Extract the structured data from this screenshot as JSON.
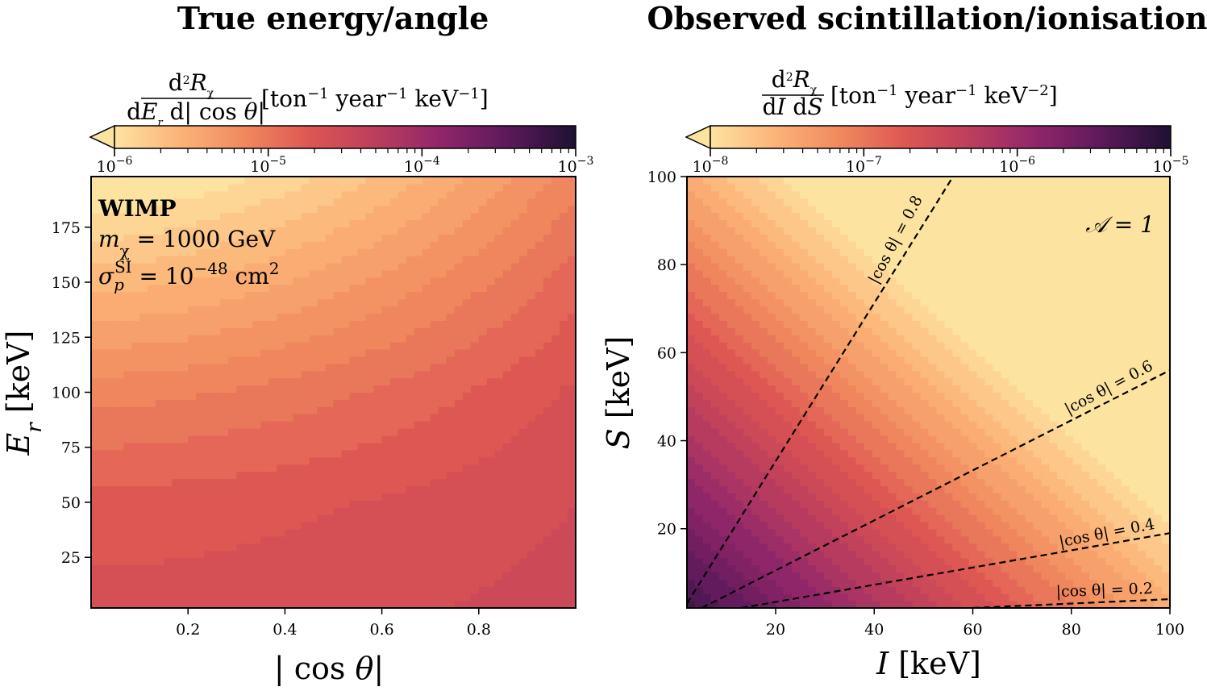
{
  "chart_data": [
    {
      "type": "heatmap",
      "subtype": "filled-contour",
      "title": "True energy/angle",
      "xlabel": "|cos θ|",
      "ylabel": "E_r [keV]",
      "xlim": [
        0.0,
        1.0
      ],
      "ylim": [
        2,
        198
      ],
      "xticks": [
        0.2,
        0.4,
        0.6,
        0.8
      ],
      "xtick_labels": [
        "0.2",
        "0.4",
        "0.6",
        "0.8"
      ],
      "yticks": [
        25,
        50,
        75,
        100,
        125,
        150,
        175
      ],
      "ytick_labels": [
        "25",
        "50",
        "75",
        "100",
        "125",
        "150",
        "175"
      ],
      "annotation": [
        "WIMP",
        "m_χ = 1000 GeV",
        "σ_p^SI = 10^−48 cm^2"
      ],
      "colormap": "magma_r",
      "colorbar": {
        "label": "d²R_χ / dE_r d|cos θ| [ton⁻¹ year⁻¹ keV⁻¹]",
        "position": "top",
        "scale": "log",
        "range": [
          1e-06,
          0.001
        ],
        "extend": "min",
        "tick_labels": [
          "10^−6",
          "10^−5",
          "10^−4",
          "10^−3"
        ]
      },
      "levels": [
        {
          "E_r": 2,
          "log10_rate_at_cos0": -4.58,
          "log10_rate_at_cos1": -4.45
        },
        {
          "E_r": 50,
          "log10_rate_at_cos0": -4.7,
          "log10_rate_at_cos1": -4.5
        },
        {
          "E_r": 100,
          "log10_rate_at_cos0": -5.05,
          "log10_rate_at_cos1": -4.6
        },
        {
          "E_r": 150,
          "log10_rate_at_cos0": -5.55,
          "log10_rate_at_cos1": -4.8
        },
        {
          "E_r": 198,
          "log10_rate_at_cos0": -6.05,
          "log10_rate_at_cos1": -5.05
        }
      ]
    },
    {
      "type": "heatmap",
      "subtype": "filled-contour",
      "title": "Observed scintillation/ionisation",
      "xlabel": "I [keV]",
      "ylabel": "S [keV]",
      "xlim": [
        2,
        100
      ],
      "ylim": [
        2,
        100
      ],
      "xticks": [
        20,
        40,
        60,
        80,
        100
      ],
      "xtick_labels": [
        "20",
        "40",
        "60",
        "80",
        "100"
      ],
      "yticks": [
        20,
        40,
        60,
        80,
        100
      ],
      "ytick_labels": [
        "20",
        "40",
        "60",
        "80",
        "100"
      ],
      "annotation": "A = 1",
      "colormap": "magma_r",
      "colorbar": {
        "label": "d²R_χ / dI dS [ton⁻¹ year⁻¹ keV⁻²]",
        "position": "top",
        "scale": "log",
        "range": [
          1e-08,
          1e-05
        ],
        "extend": "min",
        "tick_labels": [
          "10^−8",
          "10^−7",
          "10^−6",
          "10^−5"
        ]
      },
      "rate_model": "log10 rate ≈ -5.1 - 0.023 (I + S)",
      "cos_theta_lines": [
        {
          "label": "|cos θ| = 0.8",
          "value": 0.8,
          "points": [
            [
              2,
              3
            ],
            [
              56,
              100
            ]
          ]
        },
        {
          "label": "|cos θ| = 0.6",
          "value": 0.6,
          "points": [
            [
              5,
              2
            ],
            [
              100,
              56
            ]
          ]
        },
        {
          "label": "|cos θ| = 0.4",
          "value": 0.4,
          "points": [
            [
              13,
              2
            ],
            [
              100,
              19
            ]
          ]
        },
        {
          "label": "|cos θ| = 0.2",
          "value": 0.2,
          "points": [
            [
              60,
              2
            ],
            [
              100,
              4
            ]
          ]
        }
      ]
    }
  ]
}
